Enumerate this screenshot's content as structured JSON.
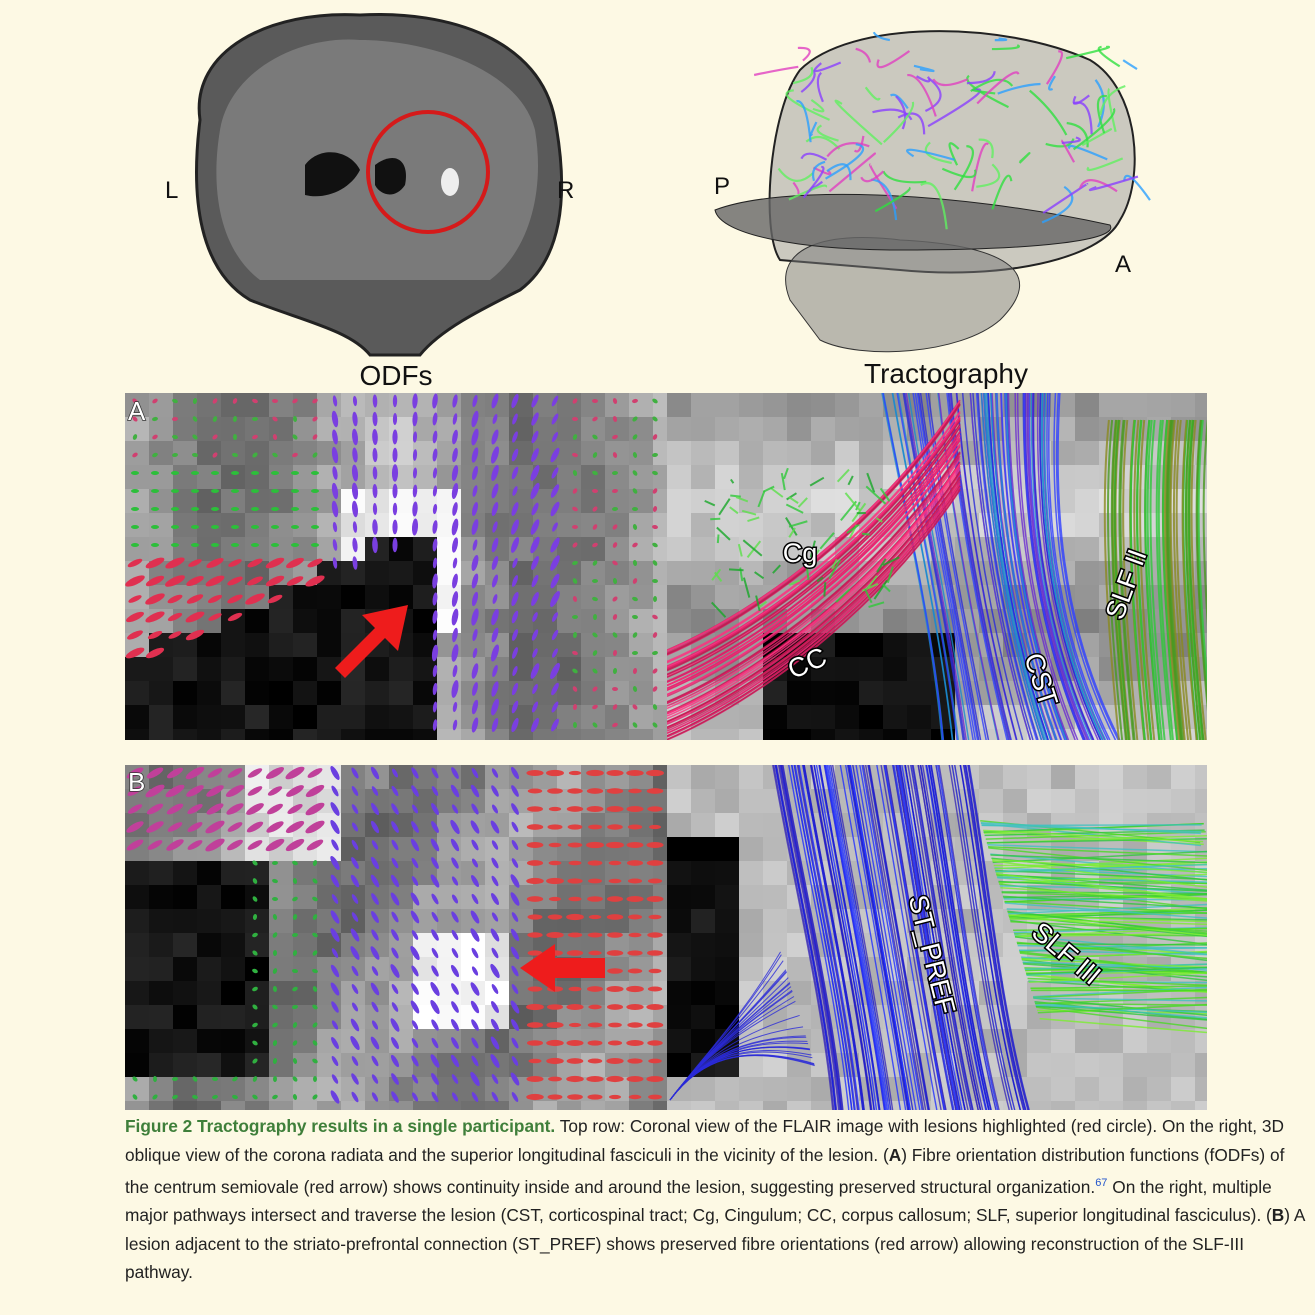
{
  "figure": {
    "top_row": {
      "coronal_labels": {
        "left": "L",
        "right": "R"
      },
      "oblique_labels": {
        "posterior": "P",
        "anterior": "A"
      }
    },
    "column_titles": [
      "ODFs",
      "Tractography"
    ],
    "panels": [
      {
        "label": "A",
        "tract_labels": [
          "Cg",
          "CC",
          "CST",
          "SLF II"
        ]
      },
      {
        "label": "B",
        "tract_labels": [
          "ST_PREF",
          "SLF III"
        ]
      }
    ]
  },
  "caption": {
    "title": "Figure 2 Tractography results in a single participant.",
    "body_1": "Top row: Coronal view of the FLAIR image with lesions highlighted (red circle). On the right, 3D oblique view of the corona radiata and the superior longitudinal fasciculi in the vicinity of the lesion. (",
    "panel_a": "A",
    "body_2": ") Fibre orientation distribution functions (fODFs) of the centrum semiovale (red arrow) shows continuity inside and around the lesion, suggesting preserved structural organization.",
    "reference": "67",
    "body_3": "On the right, multiple major pathways intersect and traverse the lesion (CST, corticospinal tract; Cg, Cingulum; CC, corpus callosum; SLF, superior longitudinal fasciculus). (",
    "panel_b": "B",
    "body_4": ") A lesion adjacent to the striato-prefrontal connection (ST_PREF) shows preserved fibre orientations (red arrow) allowing reconstruction of the SLF-III pathway."
  }
}
